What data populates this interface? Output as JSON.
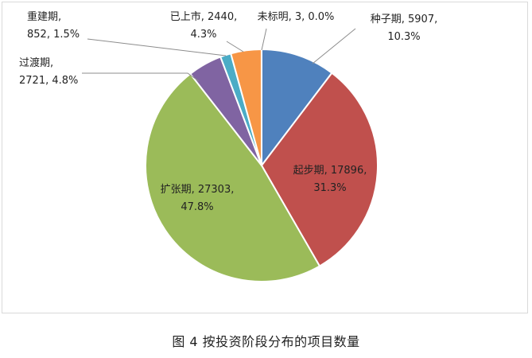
{
  "caption": "图 4  按投资阶段分布的项目数量",
  "chart_data": {
    "type": "pie",
    "start": "top",
    "direction": "clockwise",
    "slices": [
      {
        "name": "种子期",
        "value": 5907,
        "percent": "10.3%",
        "color": "#4f81bd",
        "line1": "种子期, 5907,",
        "line2": "10.3%"
      },
      {
        "name": "起步期",
        "value": 17896,
        "percent": "31.3%",
        "color": "#c0504d",
        "line1": "起步期, 17896,",
        "line2": "31.3%"
      },
      {
        "name": "扩张期",
        "value": 27303,
        "percent": "47.8%",
        "color": "#9bbb59",
        "line1": "扩张期, 27303,",
        "line2": "47.8%"
      },
      {
        "name": "过渡期",
        "value": 2721,
        "percent": "4.8%",
        "color": "#8064a2",
        "line1": "过渡期,",
        "line2": "2721, 4.8%"
      },
      {
        "name": "重建期",
        "value": 852,
        "percent": "1.5%",
        "color": "#4bacc6",
        "line1": "重建期,",
        "line2": "852, 1.5%"
      },
      {
        "name": "已上市",
        "value": 2440,
        "percent": "4.3%",
        "color": "#f79646",
        "line1": "已上市, 2440,",
        "line2": "4.3%"
      },
      {
        "name": "未标明",
        "value": 3,
        "percent": "0.0%",
        "color": "#2c4d75",
        "line1": "未标明, 3, 0.0%",
        "line2": ""
      }
    ]
  }
}
